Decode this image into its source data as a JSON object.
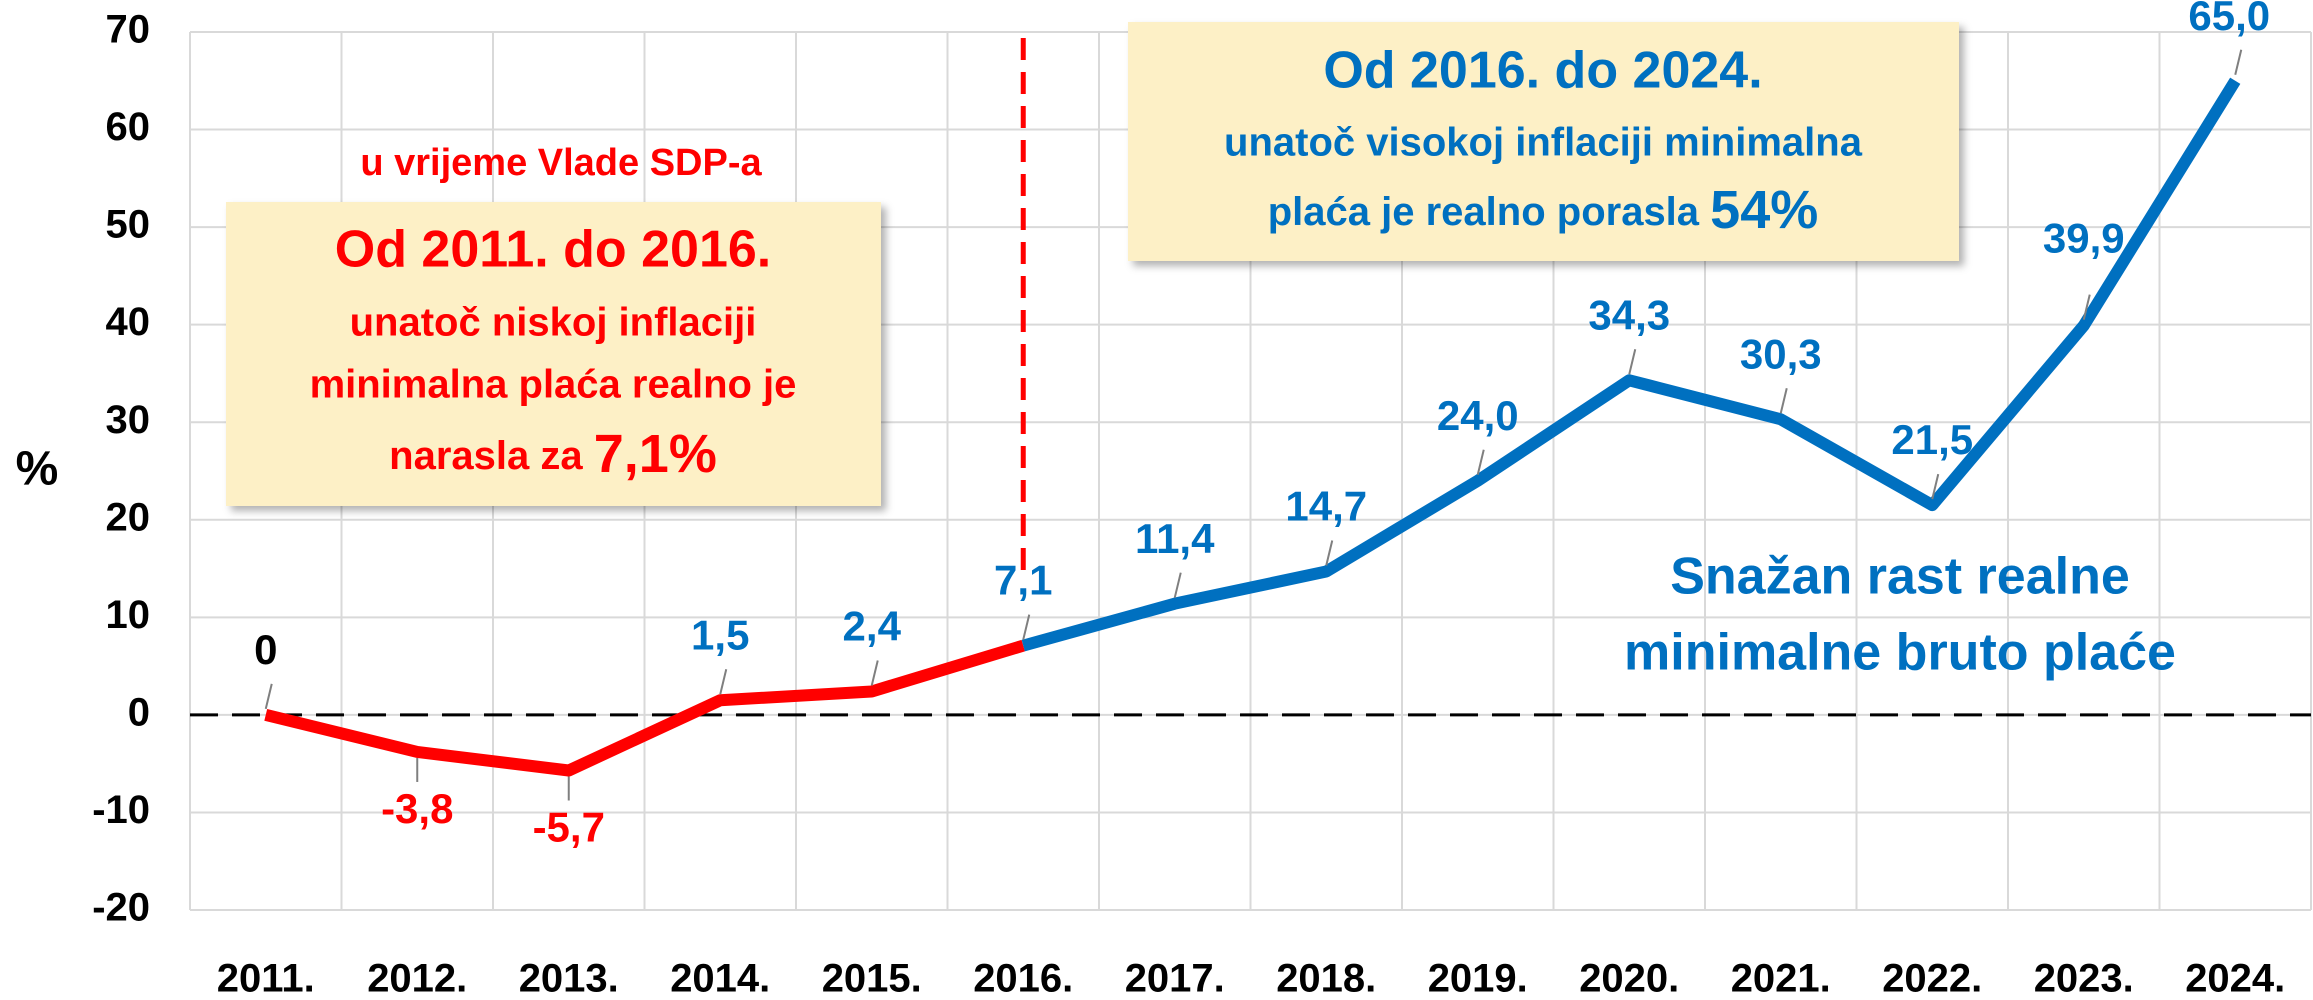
{
  "chart_data": {
    "type": "line",
    "categories": [
      "2011.",
      "2012.",
      "2013.",
      "2014.",
      "2015.",
      "2016.",
      "2017.",
      "2018.",
      "2019.",
      "2020.",
      "2021.",
      "2022.",
      "2023.",
      "2024."
    ],
    "series": [
      {
        "color": "#ff0000",
        "values": [
          0,
          -3.8,
          -5.7,
          1.5,
          2.4,
          7.1,
          null,
          null,
          null,
          null,
          null,
          null,
          null,
          null
        ],
        "value_labels": [
          "0",
          "-3,8",
          "-5,7",
          "1,5",
          "2,4",
          null,
          null,
          null,
          null,
          null,
          null,
          null,
          null,
          null
        ]
      },
      {
        "color": "#0070c0",
        "values": [
          null,
          null,
          null,
          null,
          null,
          7.1,
          11.4,
          14.7,
          24.0,
          34.3,
          30.3,
          21.5,
          39.9,
          65.0
        ],
        "value_labels": [
          null,
          null,
          null,
          null,
          null,
          "7,1",
          "11,4",
          "14,7",
          "24,0",
          "34,3",
          "30,3",
          "21,5",
          "39,9",
          "65,0"
        ]
      }
    ],
    "y_label": "%",
    "ylim": [
      -20,
      70
    ],
    "yticks": [
      -20,
      -10,
      0,
      10,
      20,
      30,
      40,
      50,
      60,
      70
    ],
    "grid": true,
    "annotations": {
      "left_note": "u vrijeme Vlade SDP-a",
      "left_title": "Od 2011. do 2016.",
      "left_lines": [
        "unatoč niskoj inflaciji",
        "minimalna plaća realno je",
        "narasla za"
      ],
      "left_highlight": "7,1%",
      "right_title": "Od 2016. do 2024.",
      "right_lines": [
        "unatoč visokoj inflaciji minimalna",
        "plaća je realno porasla"
      ],
      "right_highlight": "54%",
      "blue_text": [
        "Snažan rast realne",
        "minimalne bruto plaće"
      ]
    }
  }
}
